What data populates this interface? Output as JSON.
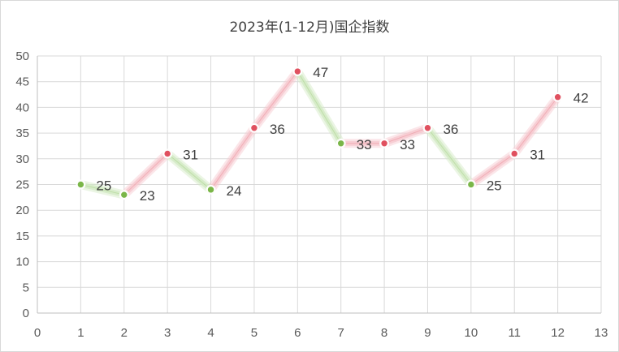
{
  "chart_data": {
    "type": "scatter",
    "title": "2023年(1-12月)国企指数",
    "xlabel": "",
    "ylabel": "",
    "x": [
      1,
      2,
      3,
      4,
      5,
      6,
      7,
      8,
      9,
      10,
      11,
      12
    ],
    "y": [
      25,
      23,
      31,
      24,
      36,
      47,
      33,
      33,
      36,
      25,
      31,
      42
    ],
    "data_labels": [
      "25",
      "23",
      "31",
      "24",
      "36",
      "47",
      "33",
      "33",
      "36",
      "25",
      "31",
      "42"
    ],
    "xlim": [
      0,
      13
    ],
    "ylim": [
      0,
      50
    ],
    "x_ticks": [
      "0",
      "1",
      "2",
      "3",
      "4",
      "5",
      "6",
      "7",
      "8",
      "9",
      "10",
      "11",
      "12",
      "13"
    ],
    "y_ticks": [
      "0",
      "5",
      "10",
      "15",
      "20",
      "25",
      "30",
      "35",
      "40",
      "45",
      "50"
    ],
    "grid": true,
    "legend": "none",
    "up_color": "#e0505f",
    "down_color": "#7ab648",
    "up_glow_color": "#f7c9cf",
    "down_glow_color": "#d3ebc4"
  }
}
